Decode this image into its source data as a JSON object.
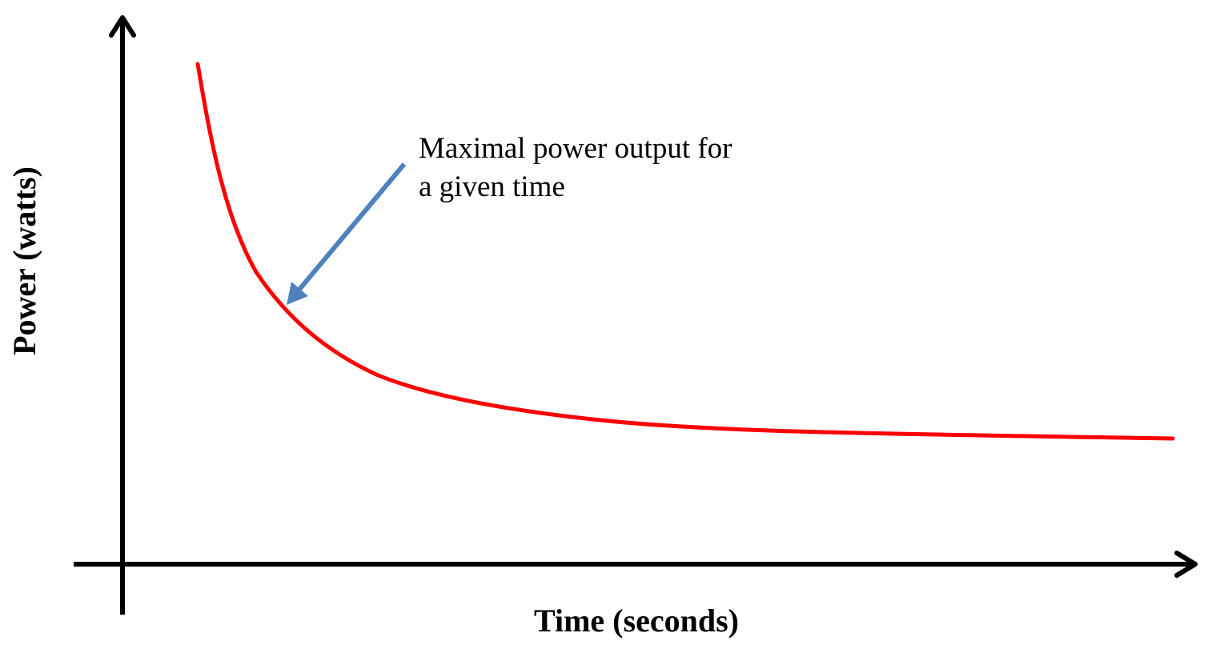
{
  "axes": {
    "x_label": "Time (seconds)",
    "y_label": "Power (watts)"
  },
  "annotation": {
    "lines": [
      "Maximal power output for",
      "a given time"
    ]
  }
}
